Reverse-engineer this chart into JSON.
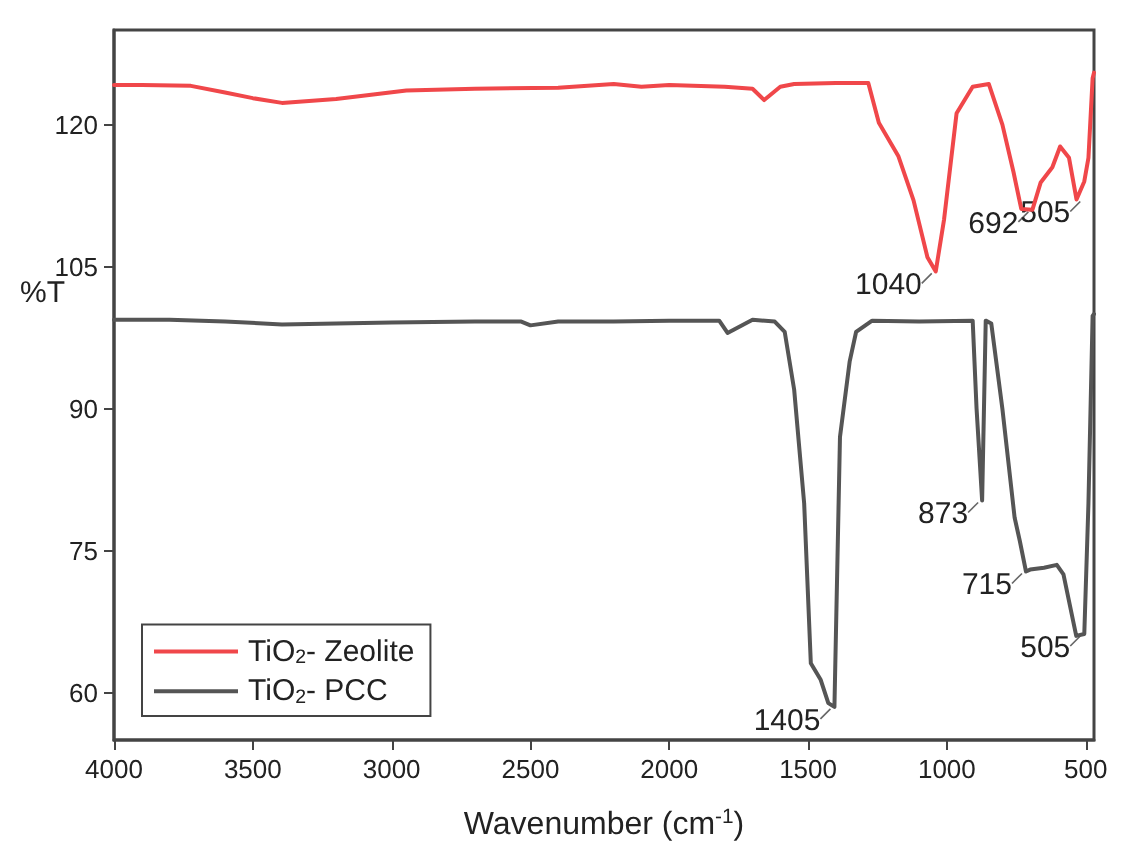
{
  "chart_data": {
    "type": "line",
    "xlabel": "Wavenumber (cm$^{-1}$)",
    "ylabel": "%T",
    "xlim": [
      4000,
      470
    ],
    "ylim": [
      55,
      130
    ],
    "xticks": [
      4000,
      3500,
      3000,
      2500,
      2000,
      1500,
      1000,
      500
    ],
    "yticks": [
      60,
      75,
      90,
      105,
      120
    ],
    "legend": "bottom left",
    "grid": false,
    "marker": "none",
    "line_style": "solid",
    "series": [
      {
        "name": "TiO$_{2}$- Zeolite",
        "color": "#f0474a",
        "x": [
          4000,
          3900,
          3723,
          3600,
          3500,
          3395,
          3200,
          2947,
          2700,
          2400,
          2200,
          2100,
          2000,
          1800,
          1700,
          1658,
          1600,
          1550,
          1400,
          1283,
          1245,
          1175,
          1120,
          1070,
          1040,
          1010,
          965,
          907,
          849,
          800,
          760,
          732,
          692,
          662,
          620,
          592,
          560,
          533,
          505,
          490,
          475,
          470
        ],
        "values": [
          124.2,
          124.2,
          124.1,
          123.4,
          122.8,
          122.3,
          122.7,
          123.6,
          123.8,
          123.9,
          124.3,
          124.0,
          124.2,
          124.0,
          123.8,
          122.6,
          124.0,
          124.3,
          124.4,
          124.4,
          120.2,
          116.7,
          112,
          106,
          104.5,
          110,
          121.2,
          124.0,
          124.3,
          120,
          115,
          111.1,
          111,
          113.9,
          115.5,
          117.7,
          116.5,
          112.1,
          114,
          116.5,
          124.9,
          125.5
        ]
      },
      {
        "name": "TiO$_{2}$- PCC",
        "color": "#555555",
        "x": [
          4000,
          3800,
          3600,
          3395,
          3200,
          3000,
          2700,
          2533,
          2500,
          2400,
          2200,
          2000,
          1850,
          1820,
          1790,
          1700,
          1620,
          1584,
          1550,
          1514,
          1490,
          1455,
          1427,
          1405,
          1385,
          1350,
          1327,
          1269,
          1100,
          907,
          893,
          873,
          860,
          840,
          800,
          756,
          737,
          715,
          700,
          650,
          604,
          580,
          534,
          505,
          490,
          475,
          470
        ],
        "values": [
          99.4,
          99.4,
          99.2,
          98.9,
          99.0,
          99.1,
          99.2,
          99.2,
          98.8,
          99.2,
          99.2,
          99.3,
          99.3,
          99.3,
          98.0,
          99.4,
          99.2,
          98.1,
          92,
          80,
          63.1,
          61.4,
          58.9,
          58.5,
          87,
          95,
          98.1,
          99.3,
          99.2,
          99.3,
          90,
          80.3,
          99.3,
          99,
          90,
          78.5,
          76,
          72.8,
          73.0,
          73.2,
          73.5,
          72.5,
          66,
          66.2,
          80,
          99.8,
          100
        ]
      }
    ],
    "annotations": [
      {
        "text": "1040",
        "x": 1040,
        "y": 104.5
      },
      {
        "text": "692",
        "x": 692,
        "y": 111
      },
      {
        "text": "505",
        "x": 505,
        "y": 112.1
      },
      {
        "text": "1405",
        "x": 1405,
        "y": 58.5
      },
      {
        "text": "873",
        "x": 873,
        "y": 80.3
      },
      {
        "text": "715",
        "x": 715,
        "y": 72.8
      },
      {
        "text": "505",
        "x": 505,
        "y": 66.2
      }
    ]
  }
}
